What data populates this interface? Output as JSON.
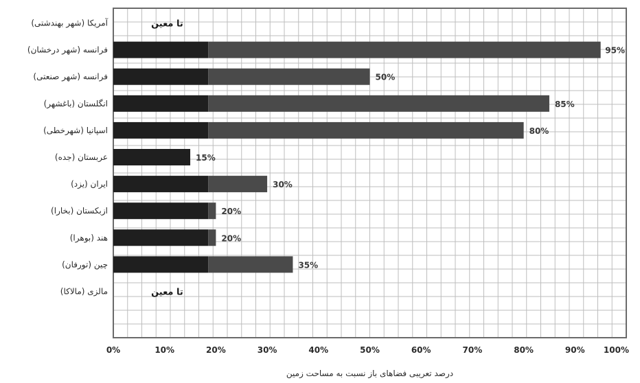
{
  "chart_data": {
    "type": "bar",
    "orientation": "horizontal",
    "categories": [
      "آمریکا (شهر بهندشتی)",
      "فرانسه (شهر درخشان)",
      "فرانسه (شهر صنعتی)",
      "انگلستان (باغشهر)",
      "اسپانیا (شهرخطی)",
      "عربستان (جده)",
      "ایران (یزد)",
      "ازبکستان (بخارا)",
      "هند (بوهرا)",
      "چین (تورفان)",
      "مالزی (مالاکا)"
    ],
    "values": [
      null,
      95,
      50,
      85,
      80,
      15,
      30,
      20,
      20,
      35,
      null
    ],
    "value_labels": [
      "",
      "95%",
      "50%",
      "85%",
      "80%",
      "15%",
      "30%",
      "20%",
      "20%",
      "35%",
      ""
    ],
    "notes": [
      "تا معین",
      "",
      "",
      "",
      "",
      "",
      "",
      "",
      "",
      "",
      "تا معین"
    ],
    "xlabel": "درصد تعریبی فضاهای باز نسبت به مساحت زمین",
    "xticks": [
      "0%",
      "10%",
      "20%",
      "30%",
      "40%",
      "50%",
      "60%",
      "70%",
      "80%",
      "90%",
      "100%"
    ],
    "xlim": [
      0,
      100
    ],
    "grid": true,
    "colors": {
      "bar_dark": "#1f1f1f",
      "bar_light": "#4a4a4a",
      "grid": "#bdbdbd",
      "frame": "#6a6a6a"
    }
  }
}
